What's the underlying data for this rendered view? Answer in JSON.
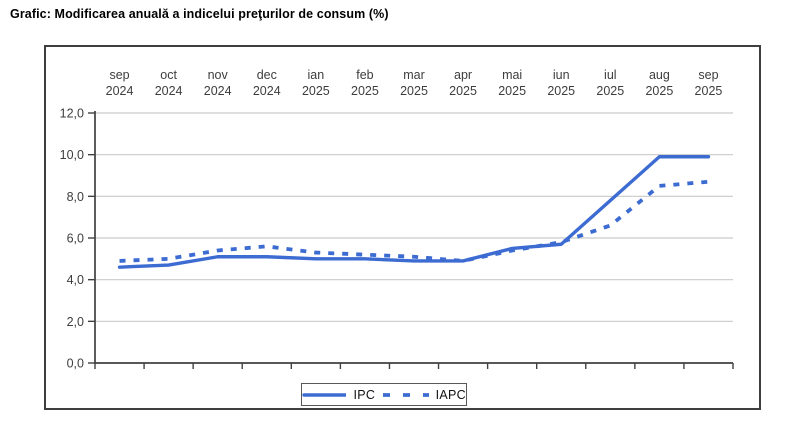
{
  "title": "Grafic: Modificarea anuală a indicelui preţurilor de consum (%)",
  "chart_data": {
    "type": "line",
    "categories": [
      {
        "month": "sep",
        "year": "2024"
      },
      {
        "month": "oct",
        "year": "2024"
      },
      {
        "month": "nov",
        "year": "2024"
      },
      {
        "month": "dec",
        "year": "2024"
      },
      {
        "month": "ian",
        "year": "2025"
      },
      {
        "month": "feb",
        "year": "2025"
      },
      {
        "month": "mar",
        "year": "2025"
      },
      {
        "month": "apr",
        "year": "2025"
      },
      {
        "month": "mai",
        "year": "2025"
      },
      {
        "month": "iun",
        "year": "2025"
      },
      {
        "month": "iul",
        "year": "2025"
      },
      {
        "month": "aug",
        "year": "2025"
      },
      {
        "month": "sep",
        "year": "2025"
      }
    ],
    "series": [
      {
        "name": "IPC",
        "style": "solid",
        "values": [
          4.6,
          4.7,
          5.1,
          5.1,
          5.0,
          5.0,
          4.9,
          4.9,
          5.5,
          5.7,
          7.8,
          9.9,
          9.9
        ]
      },
      {
        "name": "IAPC",
        "style": "dashed",
        "values": [
          4.9,
          5.0,
          5.4,
          5.6,
          5.3,
          5.2,
          5.1,
          4.9,
          5.4,
          5.8,
          6.6,
          8.5,
          8.7
        ]
      }
    ],
    "xlabel": "",
    "ylabel": "",
    "ylim": [
      0,
      12
    ],
    "ytick_step": 2,
    "ytick_labels": [
      "0,0",
      "2,0",
      "4,0",
      "6,0",
      "8,0",
      "10,0",
      "12,0"
    ],
    "grid": "horizontal",
    "x_labels_position": "top",
    "legend_position": "bottom-center",
    "colors": {
      "line": "#3c6bd2",
      "grid": "#c9c9c9",
      "axis": "#404040",
      "labels": "#3d3d3d",
      "frame_border": "#3f3f3f",
      "legend_border": "#595959",
      "title": "#000000"
    }
  }
}
